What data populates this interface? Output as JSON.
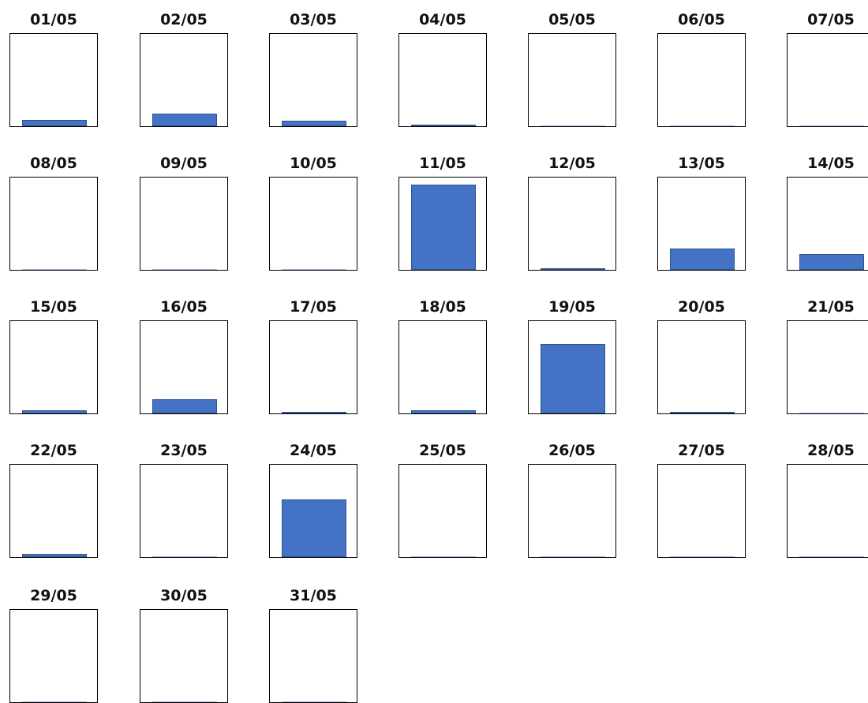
{
  "chart_data": {
    "type": "bar",
    "layout": "small-multiples",
    "ylim": [
      0,
      100
    ],
    "grid": false,
    "legend": "none",
    "bar_color": "#4472c4",
    "bar_edge_color": "#2f528f",
    "panels": [
      {
        "title": "01/05",
        "value": 7
      },
      {
        "title": "02/05",
        "value": 14
      },
      {
        "title": "03/05",
        "value": 6
      },
      {
        "title": "04/05",
        "value": 1
      },
      {
        "title": "05/05",
        "value": 0
      },
      {
        "title": "06/05",
        "value": 0
      },
      {
        "title": "07/05",
        "value": 0
      },
      {
        "title": "08/05",
        "value": 0
      },
      {
        "title": "09/05",
        "value": 0
      },
      {
        "title": "10/05",
        "value": 0
      },
      {
        "title": "11/05",
        "value": 92
      },
      {
        "title": "12/05",
        "value": 1
      },
      {
        "title": "13/05",
        "value": 23
      },
      {
        "title": "14/05",
        "value": 17
      },
      {
        "title": "15/05",
        "value": 3
      },
      {
        "title": "16/05",
        "value": 15
      },
      {
        "title": "17/05",
        "value": 2
      },
      {
        "title": "18/05",
        "value": 3
      },
      {
        "title": "19/05",
        "value": 75
      },
      {
        "title": "20/05",
        "value": 1
      },
      {
        "title": "21/05",
        "value": 0
      },
      {
        "title": "22/05",
        "value": 3
      },
      {
        "title": "23/05",
        "value": 0
      },
      {
        "title": "24/05",
        "value": 62
      },
      {
        "title": "25/05",
        "value": 0
      },
      {
        "title": "26/05",
        "value": 0
      },
      {
        "title": "27/05",
        "value": 0
      },
      {
        "title": "28/05",
        "value": 0
      },
      {
        "title": "29/05",
        "value": 0
      },
      {
        "title": "30/05",
        "value": 0
      },
      {
        "title": "31/05",
        "value": 0
      }
    ]
  }
}
